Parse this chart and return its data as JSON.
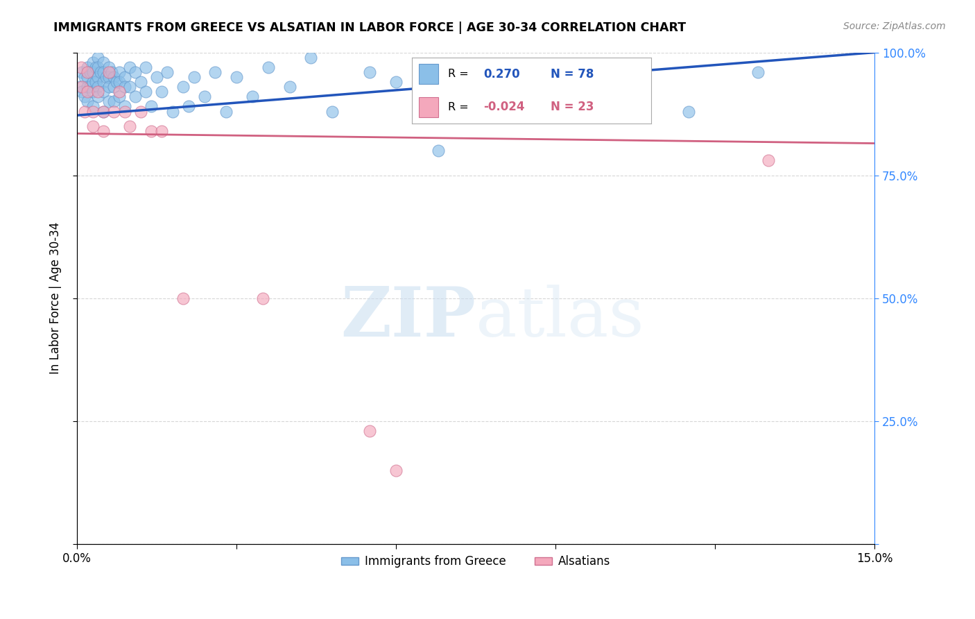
{
  "title": "IMMIGRANTS FROM GREECE VS ALSATIAN IN LABOR FORCE | AGE 30-34 CORRELATION CHART",
  "source": "Source: ZipAtlas.com",
  "ylabel": "In Labor Force | Age 30-34",
  "xlim": [
    0.0,
    0.15
  ],
  "ylim": [
    0.0,
    1.0
  ],
  "xtick_positions": [
    0.0,
    0.03,
    0.06,
    0.09,
    0.12,
    0.15
  ],
  "xticklabels": [
    "0.0%",
    "",
    "",
    "",
    "",
    "15.0%"
  ],
  "ytick_positions": [
    0.0,
    0.25,
    0.5,
    0.75,
    1.0
  ],
  "yticklabels_right": [
    "",
    "25.0%",
    "50.0%",
    "75.0%",
    "100.0%"
  ],
  "greece_color": "#8bbfe8",
  "alsatian_color": "#f4a8bc",
  "greece_edge": "#6699cc",
  "alsatian_edge": "#d07090",
  "trendline_greece_color": "#2255bb",
  "trendline_alsatian_color": "#d06080",
  "R_greece": 0.27,
  "N_greece": 78,
  "R_alsatian": -0.024,
  "N_alsatian": 23,
  "greece_x": [
    0.0005,
    0.001,
    0.001,
    0.0015,
    0.0015,
    0.002,
    0.002,
    0.002,
    0.002,
    0.0025,
    0.0025,
    0.003,
    0.003,
    0.003,
    0.003,
    0.003,
    0.0035,
    0.0035,
    0.004,
    0.004,
    0.004,
    0.004,
    0.004,
    0.0045,
    0.005,
    0.005,
    0.005,
    0.005,
    0.005,
    0.0055,
    0.006,
    0.006,
    0.006,
    0.006,
    0.0065,
    0.007,
    0.007,
    0.007,
    0.0075,
    0.008,
    0.008,
    0.008,
    0.009,
    0.009,
    0.009,
    0.01,
    0.01,
    0.011,
    0.011,
    0.012,
    0.013,
    0.013,
    0.014,
    0.015,
    0.016,
    0.017,
    0.018,
    0.02,
    0.021,
    0.022,
    0.024,
    0.026,
    0.028,
    0.03,
    0.033,
    0.036,
    0.04,
    0.044,
    0.048,
    0.055,
    0.06,
    0.068,
    0.075,
    0.085,
    0.095,
    0.105,
    0.115,
    0.128
  ],
  "greece_y": [
    0.93,
    0.96,
    0.92,
    0.95,
    0.91,
    0.97,
    0.95,
    0.93,
    0.9,
    0.96,
    0.93,
    0.98,
    0.96,
    0.94,
    0.92,
    0.89,
    0.97,
    0.94,
    0.99,
    0.97,
    0.95,
    0.93,
    0.91,
    0.96,
    0.98,
    0.96,
    0.94,
    0.92,
    0.88,
    0.95,
    0.97,
    0.95,
    0.93,
    0.9,
    0.96,
    0.95,
    0.93,
    0.9,
    0.94,
    0.96,
    0.94,
    0.91,
    0.95,
    0.93,
    0.89,
    0.97,
    0.93,
    0.96,
    0.91,
    0.94,
    0.97,
    0.92,
    0.89,
    0.95,
    0.92,
    0.96,
    0.88,
    0.93,
    0.89,
    0.95,
    0.91,
    0.96,
    0.88,
    0.95,
    0.91,
    0.97,
    0.93,
    0.99,
    0.88,
    0.96,
    0.94,
    0.8,
    0.93,
    0.97,
    0.88,
    0.95,
    0.88,
    0.96
  ],
  "alsatian_x": [
    0.0008,
    0.001,
    0.0015,
    0.002,
    0.002,
    0.003,
    0.003,
    0.004,
    0.005,
    0.005,
    0.006,
    0.007,
    0.008,
    0.009,
    0.01,
    0.012,
    0.014,
    0.016,
    0.02,
    0.035,
    0.055,
    0.06,
    0.13
  ],
  "alsatian_y": [
    0.97,
    0.93,
    0.88,
    0.96,
    0.92,
    0.88,
    0.85,
    0.92,
    0.88,
    0.84,
    0.96,
    0.88,
    0.92,
    0.88,
    0.85,
    0.88,
    0.84,
    0.84,
    0.5,
    0.5,
    0.23,
    0.15,
    0.78
  ],
  "trendline_greece_x0": 0.0,
  "trendline_greece_y0": 0.872,
  "trendline_greece_x1": 0.15,
  "trendline_greece_y1": 1.0,
  "trendline_alsatian_x0": 0.0,
  "trendline_alsatian_y0": 0.835,
  "trendline_alsatian_x1": 0.15,
  "trendline_alsatian_y1": 0.815,
  "watermark_zip": "ZIP",
  "watermark_atlas": "atlas",
  "background_color": "#ffffff",
  "grid_color": "#cccccc",
  "legend_R_label": "R = ",
  "legend_N_label": "N = "
}
